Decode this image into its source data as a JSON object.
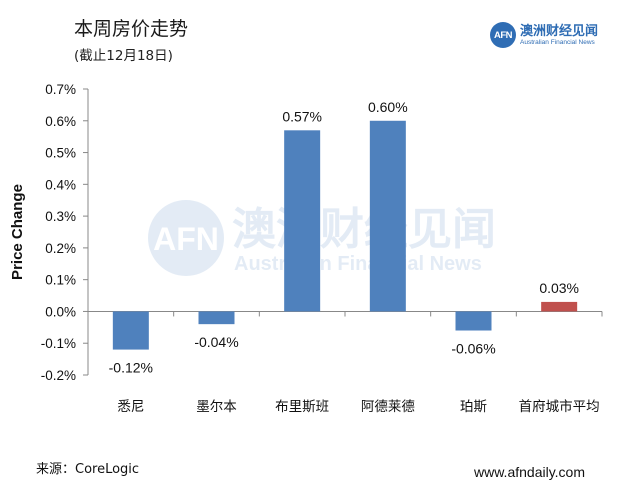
{
  "header": {
    "title": "本周房价走势",
    "subtitle": "(截止12月18日)"
  },
  "brand": {
    "logo_text": "AFN",
    "name_cn": "澳洲财经见闻",
    "name_en": "Australian Financial News"
  },
  "watermark": {
    "name_cn": "澳洲财经见闻",
    "name_en": "Australian Financial News"
  },
  "footer": {
    "source": "来源：CoreLogic",
    "website": "www.afndaily.com"
  },
  "colors": {
    "bar_default": "#4f81bd",
    "bar_highlight": "#c0504d",
    "brand_blue": "#2f6db4"
  },
  "chart_data": {
    "type": "bar",
    "ylabel": "Price Change",
    "ylim": [
      -0.2,
      0.7
    ],
    "yticks": [
      "0.7%",
      "0.6%",
      "0.5%",
      "0.4%",
      "0.3%",
      "0.2%",
      "0.1%",
      "0.0%",
      "-0.1%",
      "-0.2%"
    ],
    "grid": false,
    "categories": [
      "悉尼",
      "墨尔本",
      "布里斯班",
      "阿德莱德",
      "珀斯",
      "首府城市平均"
    ],
    "values": [
      -0.12,
      -0.04,
      0.57,
      0.6,
      -0.06,
      0.03
    ],
    "data_labels": [
      "-0.12%",
      "-0.04%",
      "0.57%",
      "0.60%",
      "-0.06%",
      "0.03%"
    ],
    "highlight_index": 5
  }
}
